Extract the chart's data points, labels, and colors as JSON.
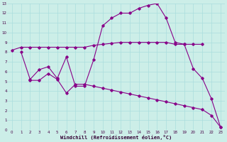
{
  "xlabel": "Windchill (Refroidissement éolien,°C)",
  "background_color": "#cceee8",
  "grid_color": "#aadddd",
  "line_color": "#880088",
  "xlim": [
    -0.5,
    23.5
  ],
  "ylim": [
    0,
    13
  ],
  "xticks": [
    0,
    1,
    2,
    3,
    4,
    5,
    6,
    7,
    8,
    9,
    10,
    11,
    12,
    13,
    14,
    15,
    16,
    17,
    18,
    19,
    20,
    21,
    22,
    23
  ],
  "yticks": [
    0,
    1,
    2,
    3,
    4,
    5,
    6,
    7,
    8,
    9,
    10,
    11,
    12,
    13
  ],
  "line1_x": [
    0,
    1,
    2,
    3,
    4,
    5,
    6,
    7,
    8,
    9,
    10,
    11,
    12,
    13,
    14,
    15,
    16,
    17,
    18,
    19,
    20,
    21
  ],
  "line1_y": [
    8.2,
    8.5,
    8.5,
    8.5,
    8.5,
    8.5,
    8.5,
    8.5,
    8.5,
    8.7,
    8.8,
    8.9,
    9.0,
    9.0,
    9.0,
    9.0,
    9.0,
    9.0,
    8.8,
    8.8,
    8.8,
    8.8
  ],
  "line2_x": [
    1,
    2,
    3,
    4,
    5,
    6,
    7,
    8,
    9,
    10,
    11,
    12,
    13,
    14,
    15,
    16,
    17,
    18,
    19,
    20,
    21,
    22,
    23
  ],
  "line2_y": [
    8.0,
    5.2,
    6.2,
    6.5,
    5.3,
    7.5,
    4.5,
    4.5,
    7.2,
    10.7,
    11.5,
    12.0,
    12.0,
    12.5,
    12.8,
    13.0,
    11.5,
    9.0,
    8.8,
    6.3,
    5.3,
    3.2,
    0.3
  ],
  "line3_x": [
    2,
    3,
    4,
    5,
    6,
    7,
    8,
    9,
    10,
    11,
    12,
    13,
    14,
    15,
    16,
    17,
    18,
    19,
    20,
    21,
    22,
    23
  ],
  "line3_y": [
    5.1,
    5.1,
    5.8,
    5.2,
    3.8,
    4.7,
    4.7,
    4.5,
    4.3,
    4.1,
    3.9,
    3.7,
    3.5,
    3.3,
    3.1,
    2.9,
    2.7,
    2.5,
    2.3,
    2.1,
    1.5,
    0.3
  ]
}
